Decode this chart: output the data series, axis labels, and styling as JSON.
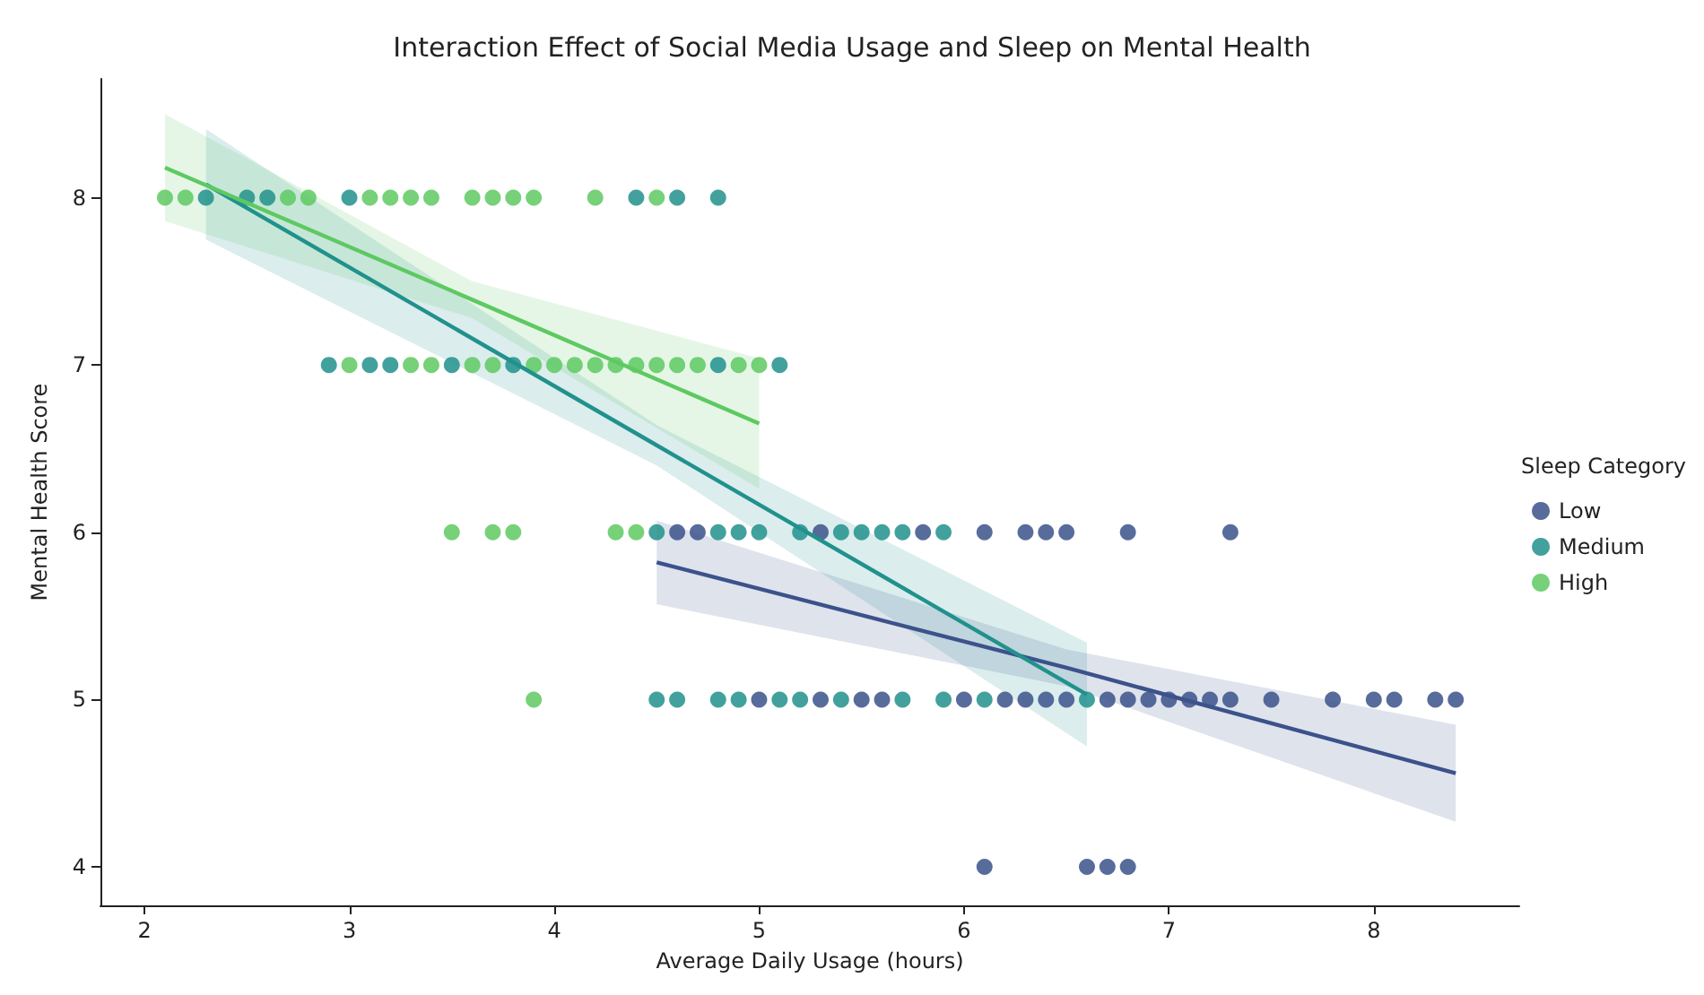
{
  "chart_data": {
    "type": "scatter",
    "title": "Interaction Effect of Social Media Usage and Sleep on Mental Health",
    "xlabel": "Average Daily Usage (hours)",
    "ylabel": "Mental Health Score",
    "legend_title": "Sleep Category",
    "legend": "right",
    "grid": false,
    "marker": "circle",
    "xlim": [
      1.785,
      8.71
    ],
    "ylim": [
      3.77,
      8.71
    ],
    "xticks": [
      2,
      3,
      4,
      5,
      6,
      7,
      8
    ],
    "yticks": [
      4,
      5,
      6,
      7,
      8
    ],
    "series": [
      {
        "name": "Low",
        "color": "#3b528b",
        "x": [
          5.0,
          5.3,
          5.5,
          5.6,
          6.0,
          6.2,
          6.3,
          6.4,
          6.5,
          6.7,
          6.8,
          6.9,
          7.0,
          7.1,
          7.2,
          7.3,
          7.5,
          7.8,
          8.0,
          8.1,
          8.3,
          8.4,
          4.6,
          4.7,
          5.3,
          5.8,
          6.1,
          6.3,
          6.4,
          6.5,
          6.8,
          7.3,
          6.1,
          6.6,
          6.7,
          6.8
        ],
        "values": [
          5,
          5,
          5,
          5,
          5,
          5,
          5,
          5,
          5,
          5,
          5,
          5,
          5,
          5,
          5,
          5,
          5,
          5,
          5,
          5,
          5,
          5,
          6,
          6,
          6,
          6,
          6,
          6,
          6,
          6,
          6,
          6,
          4,
          4,
          4,
          4
        ]
      },
      {
        "name": "Medium",
        "color": "#21918c",
        "x": [
          2.3,
          2.5,
          2.6,
          3.0,
          4.4,
          4.6,
          4.8,
          2.9,
          3.1,
          3.2,
          3.5,
          3.8,
          4.8,
          5.1,
          4.5,
          4.8,
          4.9,
          5.0,
          5.2,
          5.4,
          5.5,
          5.6,
          5.7,
          5.9,
          4.5,
          4.6,
          4.8,
          4.9,
          5.1,
          5.2,
          5.4,
          5.7,
          5.9,
          6.1,
          6.6
        ],
        "values": [
          8,
          8,
          8,
          8,
          8,
          8,
          8,
          7,
          7,
          7,
          7,
          7,
          7,
          7,
          6,
          6,
          6,
          6,
          6,
          6,
          6,
          6,
          6,
          6,
          5,
          5,
          5,
          5,
          5,
          5,
          5,
          5,
          5,
          5,
          5
        ]
      },
      {
        "name": "High",
        "color": "#5ec962",
        "x": [
          2.1,
          2.2,
          2.7,
          2.8,
          3.1,
          3.2,
          3.3,
          3.4,
          3.6,
          3.7,
          3.8,
          3.9,
          4.2,
          4.5,
          3.0,
          3.3,
          3.4,
          3.6,
          3.7,
          3.9,
          4.0,
          4.1,
          4.2,
          4.3,
          4.4,
          4.5,
          4.6,
          4.7,
          4.9,
          5.0,
          3.5,
          3.7,
          3.8,
          4.3,
          4.4,
          3.9
        ],
        "values": [
          8,
          8,
          8,
          8,
          8,
          8,
          8,
          8,
          8,
          8,
          8,
          8,
          8,
          8,
          7,
          7,
          7,
          7,
          7,
          7,
          7,
          7,
          7,
          7,
          7,
          7,
          7,
          7,
          7,
          7,
          6,
          6,
          6,
          6,
          6,
          5
        ]
      },
      {
        "type": "line",
        "marker": "none",
        "color": "#3b528b",
        "x": [
          4.5,
          6.5,
          8.4
        ],
        "values": [
          5.82,
          5.19,
          4.56
        ],
        "lower": [
          5.57,
          5.08,
          4.27
        ],
        "upper": [
          6.07,
          5.3,
          4.85
        ]
      },
      {
        "type": "line",
        "marker": "none",
        "color": "#21918c",
        "x": [
          2.3,
          4.5,
          6.6
        ],
        "values": [
          8.08,
          6.52,
          5.03
        ],
        "lower": [
          7.75,
          6.4,
          4.72
        ],
        "upper": [
          8.41,
          6.64,
          5.34
        ]
      },
      {
        "type": "line",
        "marker": "none",
        "color": "#5ec962",
        "x": [
          2.1,
          3.6,
          5.0
        ],
        "values": [
          8.18,
          7.39,
          6.65
        ],
        "lower": [
          7.86,
          7.28,
          6.26
        ],
        "upper": [
          8.5,
          7.5,
          7.04
        ]
      }
    ]
  }
}
